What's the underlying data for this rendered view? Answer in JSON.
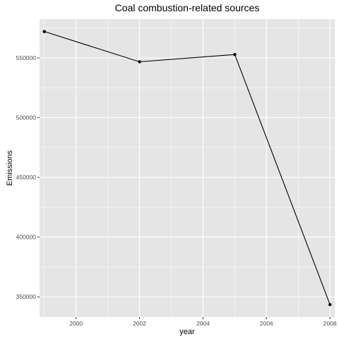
{
  "chart_data": {
    "type": "line",
    "title": "Coal combustion-related sources",
    "xlabel": "year",
    "ylabel": "Emissions",
    "x": [
      1999,
      2002,
      2005,
      2008
    ],
    "series": [
      {
        "values": [
          572127,
          546789,
          552881,
          343432
        ]
      }
    ],
    "xticks": [
      2000,
      2002,
      2004,
      2006,
      2008
    ],
    "xtick_labels": [
      "2000",
      "2002",
      "2004",
      "2006",
      "2008"
    ],
    "yticks": [
      350000,
      400000,
      450000,
      500000,
      550000
    ],
    "ytick_labels": [
      "350000",
      "400000",
      "450000",
      "500000",
      "550000"
    ],
    "xlim": [
      1998.85,
      2008.15
    ],
    "ylim": [
      332997,
      582563
    ],
    "grid": true,
    "colors": {
      "panel_bg": "#e5e5e5",
      "grid": "#ffffff",
      "line": "#000000",
      "point": "#000000"
    }
  }
}
